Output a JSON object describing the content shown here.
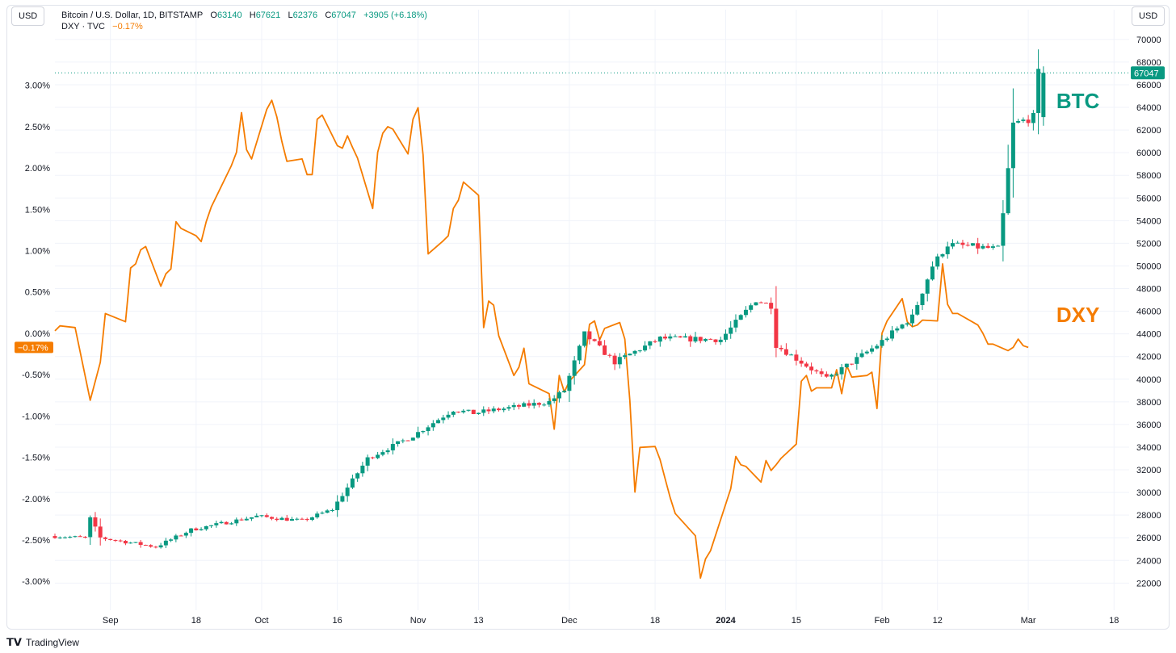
{
  "header": {
    "left_scale_button": "USD",
    "right_scale_button": "USD",
    "symbol_title": "Bitcoin / U.S. Dollar, 1D, BITSTAMP",
    "open_label": "O",
    "open_value": "63140",
    "high_label": "H",
    "high_value": "67621",
    "low_label": "L",
    "low_value": "62376",
    "close_label": "C",
    "close_value": "67047",
    "change": "+3905 (+6.18%)",
    "dxy_title": "DXY · TVC",
    "dxy_change": "−0.17%"
  },
  "footer": {
    "brand": "TradingView"
  },
  "chart_data": {
    "type": "line",
    "colors": {
      "up": "#089981",
      "down": "#f23645",
      "dxy": "#f57c00",
      "grid": "#f0f3fa",
      "axis_text": "#131722"
    },
    "x_ticks": [
      {
        "label": "Sep",
        "date": "2023-09-01"
      },
      {
        "label": "18",
        "date": "2023-09-18"
      },
      {
        "label": "Oct",
        "date": "2023-10-01"
      },
      {
        "label": "16",
        "date": "2023-10-16"
      },
      {
        "label": "Nov",
        "date": "2023-11-01"
      },
      {
        "label": "13",
        "date": "2023-11-13"
      },
      {
        "label": "Dec",
        "date": "2023-12-01"
      },
      {
        "label": "18",
        "date": "2023-12-18"
      },
      {
        "label": "2024",
        "date": "2024-01-01"
      },
      {
        "label": "15",
        "date": "2024-01-15"
      },
      {
        "label": "Feb",
        "date": "2024-02-01"
      },
      {
        "label": "12",
        "date": "2024-02-12"
      },
      {
        "label": "Mar",
        "date": "2024-03-01"
      },
      {
        "label": "18",
        "date": "2024-03-18"
      }
    ],
    "x_range": [
      "2023-08-21",
      "2024-03-21"
    ],
    "right_axis": {
      "label": "USD",
      "ticks": [
        22000,
        24000,
        26000,
        28000,
        30000,
        32000,
        34000,
        36000,
        38000,
        40000,
        42000,
        44000,
        46000,
        48000,
        50000,
        52000,
        54000,
        56000,
        58000,
        60000,
        62000,
        64000,
        66000,
        68000,
        70000
      ],
      "range": [
        19600,
        71200
      ],
      "last_price_label": "67047",
      "last_price": 67047
    },
    "left_axis": {
      "label": "USD",
      "ticks": [
        "3.00%",
        "2.50%",
        "2.00%",
        "1.50%",
        "1.00%",
        "0.50%",
        "0.00%",
        "-0.50%",
        "-1.00%",
        "-1.50%",
        "-2.00%",
        "-2.50%",
        "-3.00%"
      ],
      "tick_values": [
        3.0,
        2.5,
        2.0,
        1.5,
        1.0,
        0.5,
        0.0,
        -0.5,
        -1.0,
        -1.5,
        -2.0,
        -2.5,
        -3.0
      ],
      "range": [
        -3.35,
        3.72
      ],
      "last_value_label": "−0.17%",
      "last_value": -0.17
    },
    "series": [
      {
        "name": "BTC",
        "type": "candlestick",
        "key_points": [
          [
            "2023-08-21",
            26150
          ],
          [
            "2023-08-28",
            26000
          ],
          [
            "2023-08-29",
            27700
          ],
          [
            "2023-08-31",
            26000
          ],
          [
            "2023-09-11",
            25200
          ],
          [
            "2023-09-18",
            26700
          ],
          [
            "2023-10-01",
            27900
          ],
          [
            "2023-10-10",
            27500
          ],
          [
            "2023-10-16",
            28500
          ],
          [
            "2023-10-23",
            33000
          ],
          [
            "2023-11-01",
            35000
          ],
          [
            "2023-11-09",
            37300
          ],
          [
            "2023-11-13",
            37000
          ],
          [
            "2023-11-28",
            38000
          ],
          [
            "2023-12-01",
            39000
          ],
          [
            "2023-12-05",
            44000
          ],
          [
            "2023-12-11",
            41500
          ],
          [
            "2023-12-20",
            43600
          ],
          [
            "2024-01-01",
            43500
          ],
          [
            "2024-01-08",
            47000
          ],
          [
            "2024-01-11",
            46500
          ],
          [
            "2024-01-12",
            43000
          ],
          [
            "2024-01-22",
            40000
          ],
          [
            "2024-02-01",
            43000
          ],
          [
            "2024-02-08",
            45500
          ],
          [
            "2024-02-12",
            50000
          ],
          [
            "2024-02-15",
            51900
          ],
          [
            "2024-02-25",
            51500
          ],
          [
            "2024-02-26",
            54500
          ],
          [
            "2024-02-28",
            62500
          ],
          [
            "2024-03-03",
            63140
          ],
          [
            "2024-03-04",
            67047
          ]
        ],
        "last": {
          "open": 63140,
          "high": 67621,
          "low": 62376,
          "close": 67047
        }
      },
      {
        "name": "DXY",
        "type": "line",
        "points": [
          [
            "2023-08-21",
            0.03
          ],
          [
            "2023-08-22",
            0.09
          ],
          [
            "2023-08-25",
            0.07
          ],
          [
            "2023-08-28",
            -0.81
          ],
          [
            "2023-08-30",
            -0.35
          ],
          [
            "2023-08-31",
            0.24
          ],
          [
            "2023-09-04",
            0.14
          ],
          [
            "2023-09-05",
            0.79
          ],
          [
            "2023-09-06",
            0.84
          ],
          [
            "2023-09-07",
            1.01
          ],
          [
            "2023-09-08",
            1.05
          ],
          [
            "2023-09-11",
            0.57
          ],
          [
            "2023-09-12",
            0.72
          ],
          [
            "2023-09-13",
            0.78
          ],
          [
            "2023-09-14",
            1.35
          ],
          [
            "2023-09-15",
            1.27
          ],
          [
            "2023-09-18",
            1.18
          ],
          [
            "2023-09-19",
            1.11
          ],
          [
            "2023-09-20",
            1.35
          ],
          [
            "2023-09-21",
            1.53
          ],
          [
            "2023-09-25",
            2.03
          ],
          [
            "2023-09-26",
            2.19
          ],
          [
            "2023-09-27",
            2.67
          ],
          [
            "2023-09-28",
            2.22
          ],
          [
            "2023-09-29",
            2.11
          ],
          [
            "2023-10-02",
            2.71
          ],
          [
            "2023-10-03",
            2.82
          ],
          [
            "2023-10-04",
            2.62
          ],
          [
            "2023-10-05",
            2.32
          ],
          [
            "2023-10-06",
            2.08
          ],
          [
            "2023-10-09",
            2.11
          ],
          [
            "2023-10-10",
            1.92
          ],
          [
            "2023-10-11",
            1.92
          ],
          [
            "2023-10-12",
            2.59
          ],
          [
            "2023-10-13",
            2.64
          ],
          [
            "2023-10-16",
            2.27
          ],
          [
            "2023-10-17",
            2.24
          ],
          [
            "2023-10-18",
            2.39
          ],
          [
            "2023-10-19",
            2.25
          ],
          [
            "2023-10-20",
            2.12
          ],
          [
            "2023-10-23",
            1.51
          ],
          [
            "2023-10-24",
            2.19
          ],
          [
            "2023-10-25",
            2.42
          ],
          [
            "2023-10-26",
            2.5
          ],
          [
            "2023-10-27",
            2.47
          ],
          [
            "2023-10-30",
            2.17
          ],
          [
            "2023-10-31",
            2.59
          ],
          [
            "2023-11-01",
            2.73
          ],
          [
            "2023-11-02",
            2.16
          ],
          [
            "2023-11-03",
            0.96
          ],
          [
            "2023-11-06",
            1.12
          ],
          [
            "2023-11-07",
            1.18
          ],
          [
            "2023-11-08",
            1.51
          ],
          [
            "2023-11-09",
            1.61
          ],
          [
            "2023-11-10",
            1.83
          ],
          [
            "2023-11-13",
            1.67
          ],
          [
            "2023-11-14",
            0.07
          ],
          [
            "2023-11-15",
            0.39
          ],
          [
            "2023-11-16",
            0.34
          ],
          [
            "2023-11-17",
            -0.03
          ],
          [
            "2023-11-20",
            -0.51
          ],
          [
            "2023-11-21",
            -0.41
          ],
          [
            "2023-11-22",
            -0.18
          ],
          [
            "2023-11-23",
            -0.61
          ],
          [
            "2023-11-27",
            -0.73
          ],
          [
            "2023-11-28",
            -1.16
          ],
          [
            "2023-11-29",
            -0.51
          ],
          [
            "2023-11-30",
            -0.71
          ],
          [
            "2023-12-01",
            -0.58
          ],
          [
            "2023-12-04",
            -0.38
          ],
          [
            "2023-12-05",
            0.11
          ],
          [
            "2023-12-06",
            0.15
          ],
          [
            "2023-12-07",
            -0.08
          ],
          [
            "2023-12-08",
            0.06
          ],
          [
            "2023-12-11",
            0.13
          ],
          [
            "2023-12-12",
            -0.07
          ],
          [
            "2023-12-13",
            -0.81
          ],
          [
            "2023-12-14",
            -1.92
          ],
          [
            "2023-12-15",
            -1.38
          ],
          [
            "2023-12-18",
            -1.37
          ],
          [
            "2023-12-19",
            -1.53
          ],
          [
            "2023-12-20",
            -1.76
          ],
          [
            "2023-12-21",
            -1.99
          ],
          [
            "2023-12-22",
            -2.18
          ],
          [
            "2023-12-26",
            -2.45
          ],
          [
            "2023-12-27",
            -2.96
          ],
          [
            "2023-12-28",
            -2.73
          ],
          [
            "2023-12-29",
            -2.63
          ],
          [
            "2024-01-02",
            -1.88
          ],
          [
            "2024-01-03",
            -1.49
          ],
          [
            "2024-01-04",
            -1.59
          ],
          [
            "2024-01-05",
            -1.61
          ],
          [
            "2024-01-08",
            -1.8
          ],
          [
            "2024-01-09",
            -1.54
          ],
          [
            "2024-01-10",
            -1.66
          ],
          [
            "2024-01-11",
            -1.59
          ],
          [
            "2024-01-12",
            -1.51
          ],
          [
            "2024-01-15",
            -1.34
          ],
          [
            "2024-01-16",
            -0.58
          ],
          [
            "2024-01-17",
            -0.51
          ],
          [
            "2024-01-18",
            -0.7
          ],
          [
            "2024-01-19",
            -0.66
          ],
          [
            "2024-01-22",
            -0.66
          ],
          [
            "2024-01-23",
            -0.44
          ],
          [
            "2024-01-24",
            -0.73
          ],
          [
            "2024-01-25",
            -0.39
          ],
          [
            "2024-01-26",
            -0.53
          ],
          [
            "2024-01-29",
            -0.51
          ],
          [
            "2024-01-30",
            -0.47
          ],
          [
            "2024-01-31",
            -0.91
          ],
          [
            "2024-02-01",
            0.0
          ],
          [
            "2024-02-02",
            0.15
          ],
          [
            "2024-02-05",
            0.42
          ],
          [
            "2024-02-06",
            0.14
          ],
          [
            "2024-02-07",
            0.08
          ],
          [
            "2024-02-08",
            0.1
          ],
          [
            "2024-02-09",
            0.16
          ],
          [
            "2024-02-12",
            0.15
          ],
          [
            "2024-02-13",
            0.84
          ],
          [
            "2024-02-14",
            0.35
          ],
          [
            "2024-02-15",
            0.24
          ],
          [
            "2024-02-16",
            0.24
          ],
          [
            "2024-02-20",
            0.1
          ],
          [
            "2024-02-21",
            0.0
          ],
          [
            "2024-02-22",
            -0.13
          ],
          [
            "2024-02-23",
            -0.13
          ],
          [
            "2024-02-26",
            -0.21
          ],
          [
            "2024-02-27",
            -0.17
          ],
          [
            "2024-02-28",
            -0.07
          ],
          [
            "2024-02-29",
            -0.15
          ],
          [
            "2024-03-01",
            -0.17
          ]
        ]
      }
    ],
    "annotations": [
      {
        "text": "BTC",
        "color": "#089981",
        "date": "2024-03-04",
        "value": 64500
      },
      {
        "text": "DXY",
        "color": "#f57c00",
        "date": "2024-03-04",
        "value": 45600
      }
    ]
  }
}
